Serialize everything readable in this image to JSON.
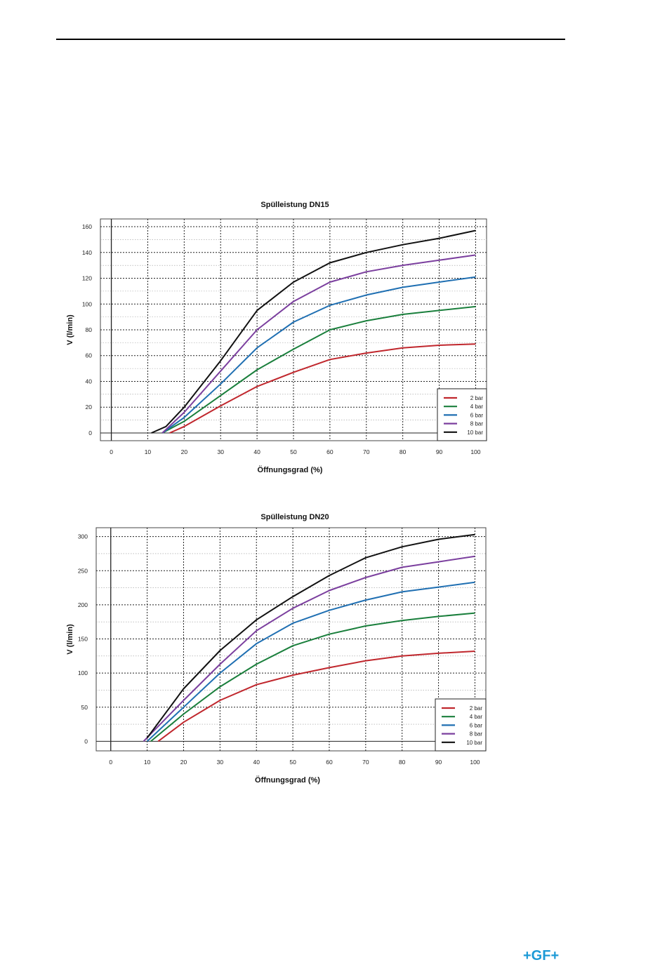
{
  "logo": {
    "text": "+GF+",
    "color": "#1c9ad6"
  },
  "legend_labels": [
    "2 bar",
    "4 bar",
    "6 bar",
    "8 bar",
    "10 bar"
  ],
  "series_colors": [
    "#c0272d",
    "#1a7f3c",
    "#1f6fb2",
    "#7b3f9e",
    "#111111"
  ],
  "chart_data": [
    {
      "type": "line",
      "title": "Spülleistung DN15",
      "xlabel": "Öffnungsgrad (%)",
      "ylabel": "V (l/min)",
      "xlim": [
        -3,
        103
      ],
      "ylim": [
        -6,
        166
      ],
      "xticks": [
        0,
        10,
        20,
        30,
        40,
        50,
        60,
        70,
        80,
        90,
        100
      ],
      "yticks": [
        0,
        20,
        40,
        60,
        80,
        100,
        120,
        140,
        160
      ],
      "grid": true,
      "legend_position": "bottom-right",
      "series": [
        {
          "name": "2 bar",
          "x": [
            16,
            20,
            30,
            40,
            50,
            60,
            70,
            80,
            90,
            100
          ],
          "values": [
            0,
            5,
            21,
            36,
            47,
            57,
            62,
            66,
            68,
            69
          ]
        },
        {
          "name": "4 bar",
          "x": [
            14,
            20,
            30,
            40,
            50,
            60,
            70,
            80,
            90,
            100
          ],
          "values": [
            0,
            9,
            29,
            49,
            65,
            80,
            87,
            92,
            95,
            98
          ]
        },
        {
          "name": "6 bar",
          "x": [
            14,
            20,
            30,
            40,
            50,
            60,
            70,
            80,
            90,
            100
          ],
          "values": [
            0,
            12,
            38,
            66,
            86,
            99,
            107,
            113,
            117,
            121
          ]
        },
        {
          "name": "8 bar",
          "x": [
            14,
            20,
            30,
            40,
            50,
            60,
            70,
            80,
            90,
            100
          ],
          "values": [
            0,
            16,
            48,
            80,
            102,
            117,
            125,
            130,
            134,
            138
          ]
        },
        {
          "name": "10 bar",
          "x": [
            11,
            15,
            20,
            30,
            40,
            50,
            60,
            70,
            80,
            90,
            100
          ],
          "values": [
            0,
            5,
            20,
            56,
            95,
            117,
            132,
            140,
            146,
            151,
            157
          ]
        }
      ]
    },
    {
      "type": "line",
      "title": "Spülleistung DN20",
      "xlabel": "Öffnungsgrad (%)",
      "ylabel": "V (l/min)",
      "xlim": [
        -4,
        103
      ],
      "ylim": [
        -14,
        313
      ],
      "xticks": [
        0,
        10,
        20,
        30,
        40,
        50,
        60,
        70,
        80,
        90,
        100
      ],
      "yticks": [
        0,
        50,
        100,
        150,
        200,
        250,
        300
      ],
      "grid": true,
      "legend_position": "bottom-right",
      "series": [
        {
          "name": "2 bar",
          "x": [
            13,
            20,
            30,
            40,
            50,
            60,
            70,
            80,
            90,
            100
          ],
          "values": [
            0,
            28,
            60,
            83,
            97,
            108,
            118,
            125,
            129,
            132
          ]
        },
        {
          "name": "4 bar",
          "x": [
            11,
            20,
            30,
            40,
            50,
            60,
            70,
            80,
            90,
            100
          ],
          "values": [
            0,
            40,
            80,
            113,
            140,
            157,
            169,
            177,
            183,
            188
          ]
        },
        {
          "name": "6 bar",
          "x": [
            10,
            20,
            30,
            40,
            50,
            60,
            70,
            80,
            90,
            100
          ],
          "values": [
            0,
            50,
            100,
            143,
            173,
            192,
            207,
            219,
            226,
            233
          ]
        },
        {
          "name": "8 bar",
          "x": [
            9,
            20,
            30,
            40,
            50,
            60,
            70,
            80,
            90,
            100
          ],
          "values": [
            0,
            60,
            113,
            162,
            195,
            221,
            240,
            255,
            263,
            271
          ]
        },
        {
          "name": "10 bar",
          "x": [
            10,
            20,
            30,
            40,
            50,
            60,
            70,
            80,
            90,
            100
          ],
          "values": [
            5,
            77,
            133,
            178,
            212,
            243,
            269,
            285,
            296,
            303
          ]
        }
      ]
    }
  ]
}
